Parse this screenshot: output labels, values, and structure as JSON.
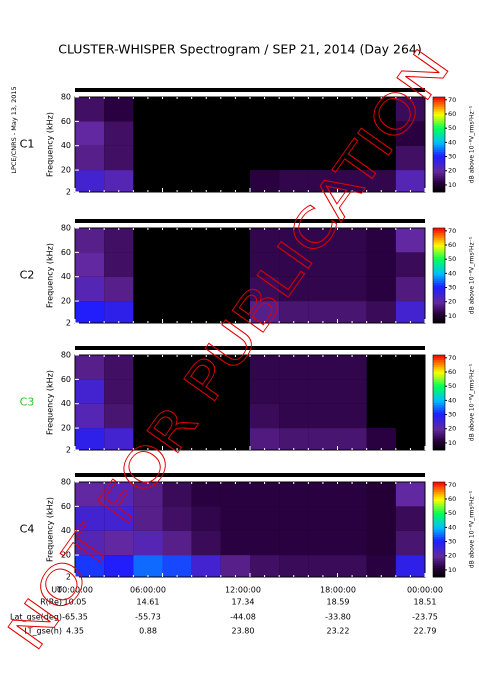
{
  "title": "CLUSTER-WHISPER Spectrogram / SEP 21, 2014 (Day 264)",
  "side_note": "LPCE/CNRS - May 13, 2015",
  "watermark": "NOT FOR PUBLICATION",
  "chart_data": [
    {
      "type": "heatmap",
      "label": "C1",
      "label_color": "#000000",
      "ylabel": "Frequency (kHz)",
      "x_bins": [
        0,
        2,
        4,
        6,
        8,
        10,
        12,
        14,
        16,
        18,
        20,
        22,
        24
      ],
      "y_bins": [
        2,
        20,
        40,
        60,
        80
      ],
      "values": [
        [
          25,
          18,
          20,
          15
        ],
        [
          22,
          15,
          15,
          12
        ],
        [
          null,
          null,
          null,
          null
        ],
        [
          null,
          null,
          null,
          null
        ],
        [
          null,
          null,
          null,
          null
        ],
        [
          null,
          null,
          null,
          null
        ],
        [
          12,
          null,
          null,
          null
        ],
        [
          13,
          null,
          null,
          null
        ],
        [
          13,
          null,
          null,
          null
        ],
        [
          13,
          null,
          null,
          null
        ],
        [
          13,
          null,
          null,
          null
        ],
        [
          22,
          15,
          12,
          14
        ]
      ],
      "xlim": [
        0,
        24
      ],
      "xticks": [
        0,
        6,
        12,
        18,
        24
      ],
      "ylim": [
        2,
        80
      ],
      "yticks": [
        2,
        20,
        40,
        60,
        80
      ],
      "colorbar": {
        "lim": [
          5,
          72
        ],
        "ticks": [
          10,
          20,
          30,
          40,
          50,
          60,
          70
        ],
        "label": "dB above 10⁻⁸V_rms²Hz⁻¹"
      }
    },
    {
      "type": "heatmap",
      "label": "C2",
      "label_color": "#000000",
      "ylabel": "Frequency (kHz)",
      "x_bins": [
        0,
        2,
        4,
        6,
        8,
        10,
        12,
        14,
        16,
        18,
        20,
        22,
        24
      ],
      "y_bins": [
        2,
        20,
        40,
        60,
        80
      ],
      "values": [
        [
          30,
          22,
          20,
          18
        ],
        [
          28,
          18,
          15,
          15
        ],
        [
          null,
          null,
          null,
          null
        ],
        [
          null,
          null,
          null,
          null
        ],
        [
          null,
          null,
          null,
          null
        ],
        [
          null,
          null,
          null,
          null
        ],
        [
          18,
          14,
          13,
          13
        ],
        [
          16,
          13,
          13,
          13
        ],
        [
          16,
          13,
          13,
          13
        ],
        [
          16,
          13,
          13,
          13
        ],
        [
          14,
          12,
          12,
          12
        ],
        [
          25,
          17,
          14,
          20
        ]
      ],
      "xlim": [
        0,
        24
      ],
      "xticks": [
        0,
        6,
        12,
        18,
        24
      ],
      "ylim": [
        2,
        80
      ],
      "yticks": [
        2,
        20,
        40,
        60,
        80
      ],
      "colorbar": {
        "lim": [
          5,
          72
        ],
        "ticks": [
          10,
          20,
          30,
          40,
          50,
          60,
          70
        ],
        "label": "dB above 10⁻⁸V_rms²Hz⁻¹"
      }
    },
    {
      "type": "heatmap",
      "label": "C3",
      "label_color": "#22cc22",
      "ylabel": "Frequency (kHz)",
      "x_bins": [
        0,
        2,
        4,
        6,
        8,
        10,
        12,
        14,
        16,
        18,
        20,
        22,
        24
      ],
      "y_bins": [
        2,
        20,
        40,
        60,
        80
      ],
      "values": [
        [
          28,
          22,
          25,
          18
        ],
        [
          25,
          16,
          15,
          15
        ],
        [
          null,
          null,
          null,
          null
        ],
        [
          null,
          null,
          null,
          null
        ],
        [
          null,
          null,
          null,
          null
        ],
        [
          null,
          null,
          null,
          null
        ],
        [
          17,
          14,
          13,
          13
        ],
        [
          16,
          13,
          13,
          13
        ],
        [
          16,
          13,
          13,
          13
        ],
        [
          16,
          13,
          13,
          13
        ],
        [
          12,
          null,
          null,
          null
        ],
        [
          null,
          null,
          null,
          null
        ]
      ],
      "xlim": [
        0,
        24
      ],
      "xticks": [
        0,
        6,
        12,
        18,
        24
      ],
      "ylim": [
        2,
        80
      ],
      "yticks": [
        2,
        20,
        40,
        60,
        80
      ],
      "colorbar": {
        "lim": [
          5,
          72
        ],
        "ticks": [
          10,
          20,
          30,
          40,
          50,
          60,
          70
        ],
        "label": "dB above 10⁻⁸V_rms²Hz⁻¹"
      }
    },
    {
      "type": "heatmap",
      "label": "C4",
      "label_color": "#000000",
      "ylabel": "Frequency (kHz)",
      "x_bins": [
        0,
        2,
        4,
        6,
        8,
        10,
        12,
        14,
        16,
        18,
        20,
        22,
        24
      ],
      "y_bins": [
        2,
        20,
        40,
        60,
        80
      ],
      "values": [
        [
          32,
          22,
          25,
          20
        ],
        [
          30,
          20,
          25,
          22
        ],
        [
          35,
          22,
          18,
          18
        ],
        [
          33,
          18,
          15,
          14
        ],
        [
          25,
          14,
          13,
          12
        ],
        [
          18,
          12,
          12,
          12
        ],
        [
          15,
          12,
          12,
          12
        ],
        [
          14,
          12,
          12,
          12
        ],
        [
          14,
          12,
          12,
          12
        ],
        [
          14,
          12,
          12,
          12
        ],
        [
          12,
          11,
          11,
          11
        ],
        [
          28,
          16,
          14,
          20
        ]
      ],
      "xlim": [
        0,
        24
      ],
      "xticks": [
        0,
        6,
        12,
        18,
        24
      ],
      "ylim": [
        2,
        80
      ],
      "yticks": [
        2,
        20,
        40,
        60,
        80
      ],
      "colorbar": {
        "lim": [
          5,
          72
        ],
        "ticks": [
          10,
          20,
          30,
          40,
          50,
          60,
          70
        ],
        "label": "dB above 10⁻⁸V_rms²Hz⁻¹"
      }
    }
  ],
  "ephemeris": {
    "rows": [
      [
        "UT",
        "00:00:00",
        "06:00:00",
        "12:00:00",
        "18:00:00",
        "00:00:00"
      ],
      [
        "R(Re)",
        "10.05",
        "14.61",
        "17.34",
        "18.59",
        "18.51"
      ],
      [
        "Lat_gse(deg)",
        "-65.35",
        "-55.73",
        "-44.08",
        "-33.80",
        "-23.75"
      ],
      [
        "LT_gse(h)",
        "4.35",
        "0.88",
        "23.80",
        "23.22",
        "22.79"
      ]
    ]
  }
}
